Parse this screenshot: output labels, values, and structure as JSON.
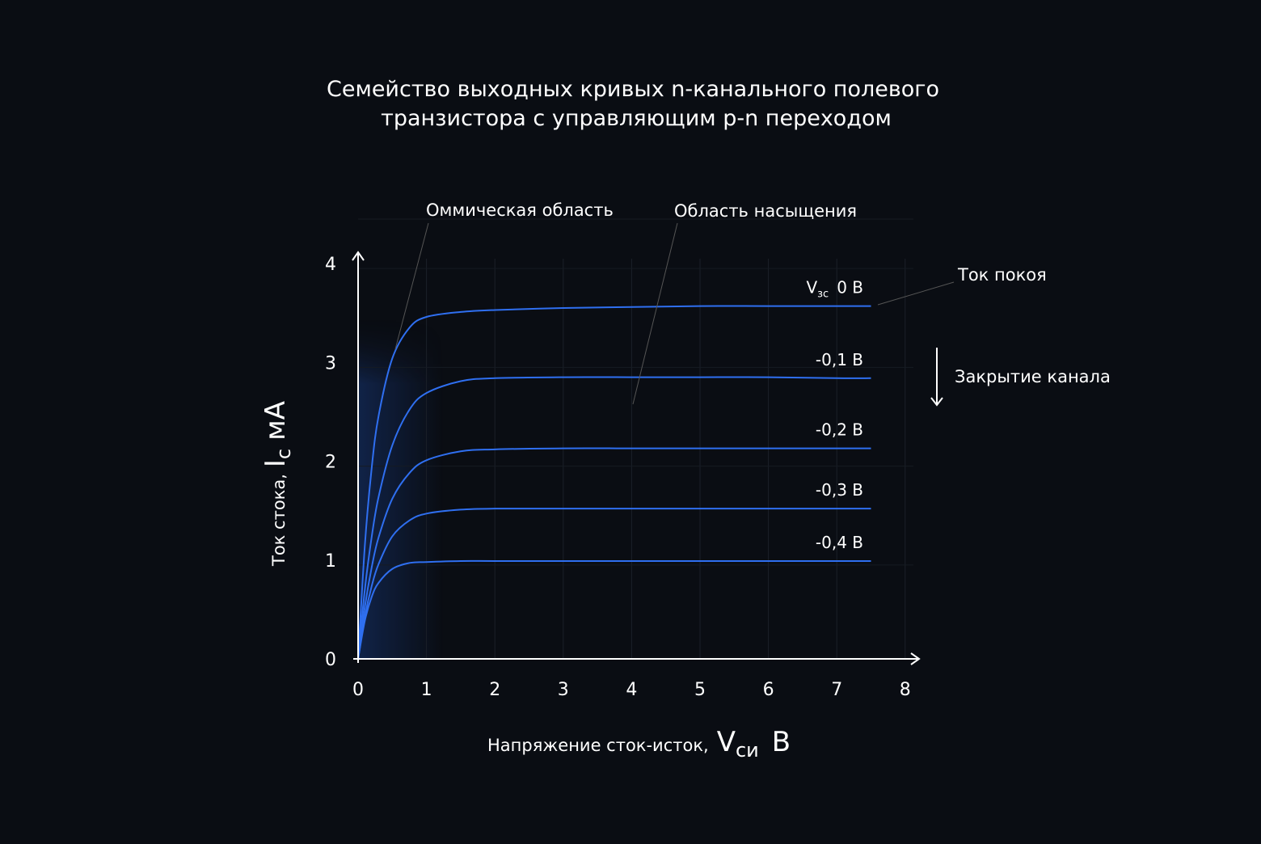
{
  "chart_data": {
    "type": "line",
    "title": [
      "Семейство выходных кривых n-канального полевого",
      "транзистора с управляющим p-n переходом"
    ],
    "xlabel": {
      "text": "Напряжение сток-исток,",
      "symbol": "V",
      "sub": "си",
      "unit": "В"
    },
    "ylabel": {
      "text": "Ток стока,",
      "symbol": "I",
      "sub": "c",
      "unit": "мА"
    },
    "xlim": [
      0,
      8
    ],
    "ylim": [
      0,
      4
    ],
    "xticks": [
      "0",
      "1",
      "2",
      "3",
      "4",
      "5",
      "6",
      "7",
      "8"
    ],
    "yticks": [
      "0",
      "1",
      "2",
      "3",
      "4"
    ],
    "grid": true,
    "line_color": "#2f6ff0",
    "x": [
      0,
      0.1,
      0.2,
      0.3,
      0.5,
      0.75,
      1,
      1.5,
      2,
      3,
      4,
      5,
      6,
      7,
      7.5
    ],
    "series": [
      {
        "name": "0 В",
        "label_prefix": "V",
        "label_sub": "зс",
        "values": [
          0,
          1.16,
          1.94,
          2.46,
          3.04,
          3.35,
          3.46,
          3.51,
          3.53,
          3.55,
          3.56,
          3.57,
          3.57,
          3.57,
          3.57
        ]
      },
      {
        "name": "-0,1 В",
        "values": [
          0,
          0.71,
          1.24,
          1.64,
          2.16,
          2.52,
          2.69,
          2.81,
          2.84,
          2.85,
          2.85,
          2.85,
          2.85,
          2.84,
          2.84
        ]
      },
      {
        "name": "-0,2 В",
        "values": [
          0,
          0.53,
          0.93,
          1.23,
          1.62,
          1.88,
          2.01,
          2.1,
          2.12,
          2.13,
          2.13,
          2.13,
          2.13,
          2.13,
          2.13
        ]
      },
      {
        "name": "-0,3 В",
        "values": [
          0,
          0.43,
          0.74,
          0.96,
          1.24,
          1.4,
          1.47,
          1.51,
          1.52,
          1.52,
          1.52,
          1.52,
          1.52,
          1.52,
          1.52
        ]
      },
      {
        "name": "-0,4 В",
        "values": [
          0,
          0.39,
          0.63,
          0.77,
          0.91,
          0.97,
          0.98,
          0.99,
          0.99,
          0.99,
          0.99,
          0.99,
          0.99,
          0.99,
          0.99
        ]
      }
    ],
    "annotations": {
      "ohmic": "Оммическая область",
      "saturation": "Область насыщения",
      "quiescent": "Ток покоя",
      "closing": "Закрытие канала"
    }
  }
}
